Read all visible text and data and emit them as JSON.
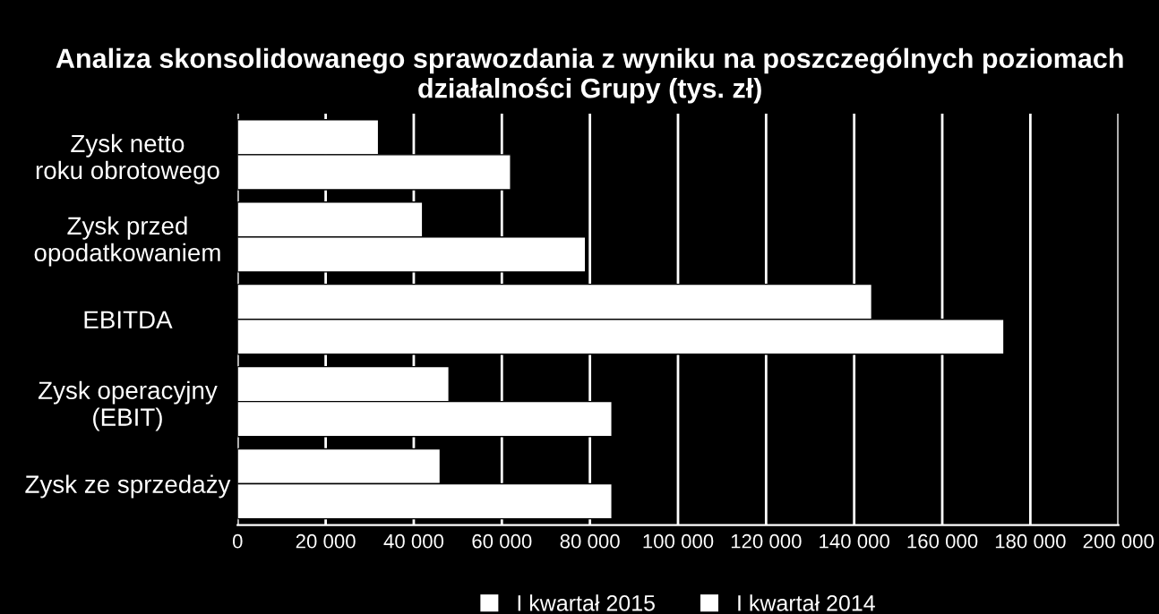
{
  "chart_data": {
    "type": "bar",
    "orientation": "horizontal",
    "title": "Analiza skonsolidowanego sprawozdania z wyniku na poszczególnych poziomach działalności Grupy (tys. zł)",
    "categories": [
      "Zysk netto\nroku obrotowego",
      "Zysk przed\nopodatkowaniem",
      "EBITDA",
      "Zysk operacyjny\n(EBIT)",
      "Zysk ze sprzedaży"
    ],
    "series": [
      {
        "name": "I kwartał 2015",
        "color": "#ffffff",
        "values": [
          32000,
          42000,
          144000,
          48000,
          46000
        ]
      },
      {
        "name": "I kwartał 2014",
        "color": "#ffffff",
        "values": [
          62000,
          79000,
          174000,
          85000,
          85000
        ]
      }
    ],
    "xlim": [
      0,
      200000
    ],
    "xticks": [
      {
        "value": 0,
        "label": "0"
      },
      {
        "value": 20000,
        "label": "20 000"
      },
      {
        "value": 40000,
        "label": "40 000"
      },
      {
        "value": 60000,
        "label": "60 000"
      },
      {
        "value": 80000,
        "label": "80 000"
      },
      {
        "value": 100000,
        "label": "100 000"
      },
      {
        "value": 120000,
        "label": "120 000"
      },
      {
        "value": 140000,
        "label": "140 000"
      },
      {
        "value": 160000,
        "label": "160 000"
      },
      {
        "value": 180000,
        "label": "180 000"
      },
      {
        "value": 200000,
        "label": "200 000"
      }
    ],
    "grid": "x",
    "legend": "bottom"
  }
}
